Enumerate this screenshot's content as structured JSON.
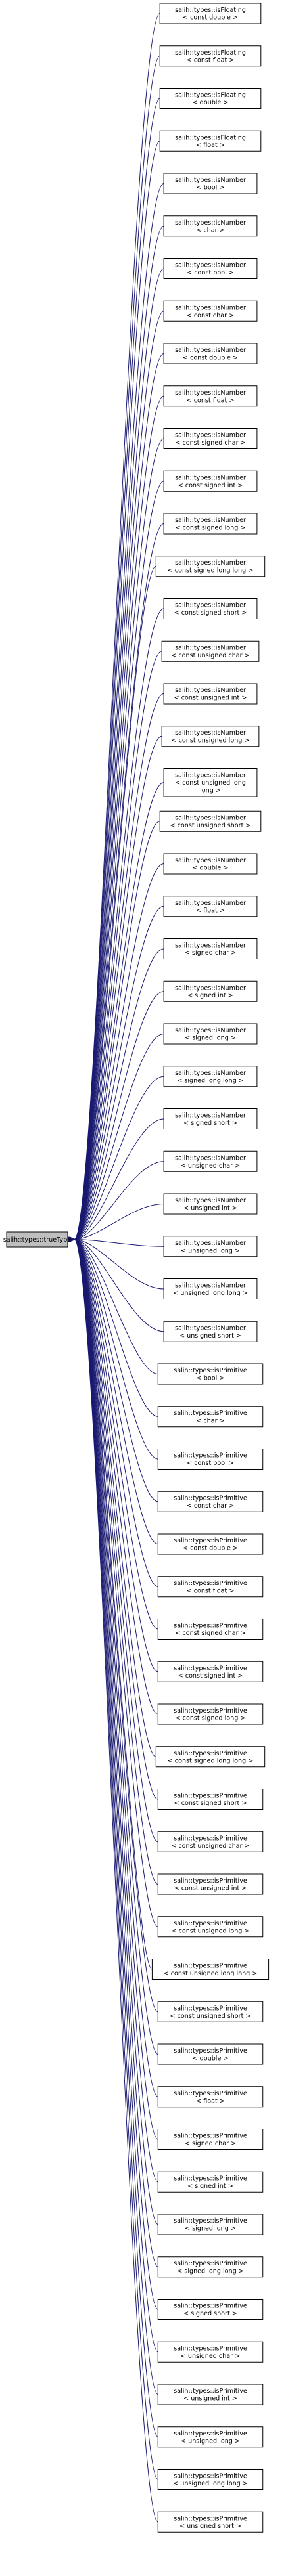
{
  "diagram": {
    "base_class": "salih::types::trueType",
    "colors": {
      "edge": "#191970",
      "node_border": "#000000",
      "base_fill": "#bfbfbf",
      "node_fill": "#ffffff"
    },
    "derived": [
      [
        "salih::types::isFloating",
        "< const double >"
      ],
      [
        "salih::types::isFloating",
        "< const float >"
      ],
      [
        "salih::types::isFloating",
        "< double >"
      ],
      [
        "salih::types::isFloating",
        "< float >"
      ],
      [
        "salih::types::isNumber",
        "< bool >"
      ],
      [
        "salih::types::isNumber",
        "< char >"
      ],
      [
        "salih::types::isNumber",
        "< const bool >"
      ],
      [
        "salih::types::isNumber",
        "< const char >"
      ],
      [
        "salih::types::isNumber",
        "< const double >"
      ],
      [
        "salih::types::isNumber",
        "< const float >"
      ],
      [
        "salih::types::isNumber",
        "< const signed char >"
      ],
      [
        "salih::types::isNumber",
        "< const signed int >"
      ],
      [
        "salih::types::isNumber",
        "< const signed long >"
      ],
      [
        "salih::types::isNumber",
        "< const signed long long >"
      ],
      [
        "salih::types::isNumber",
        "< const signed short >"
      ],
      [
        "salih::types::isNumber",
        "< const unsigned char >"
      ],
      [
        "salih::types::isNumber",
        "< const unsigned int >"
      ],
      [
        "salih::types::isNumber",
        "< const unsigned long >"
      ],
      [
        "salih::types::isNumber",
        "< const unsigned long",
        "long >"
      ],
      [
        "salih::types::isNumber",
        "< const unsigned short >"
      ],
      [
        "salih::types::isNumber",
        "< double >"
      ],
      [
        "salih::types::isNumber",
        "< float >"
      ],
      [
        "salih::types::isNumber",
        "< signed char >"
      ],
      [
        "salih::types::isNumber",
        "< signed int >"
      ],
      [
        "salih::types::isNumber",
        "< signed long >"
      ],
      [
        "salih::types::isNumber",
        "< signed long long >"
      ],
      [
        "salih::types::isNumber",
        "< signed short >"
      ],
      [
        "salih::types::isNumber",
        "< unsigned char >"
      ],
      [
        "salih::types::isNumber",
        "< unsigned int >"
      ],
      [
        "salih::types::isNumber",
        "< unsigned long >"
      ],
      [
        "salih::types::isNumber",
        "< unsigned long long >"
      ],
      [
        "salih::types::isNumber",
        "< unsigned short >"
      ],
      [
        "salih::types::isPrimitive",
        "< bool >"
      ],
      [
        "salih::types::isPrimitive",
        "< char >"
      ],
      [
        "salih::types::isPrimitive",
        "< const bool >"
      ],
      [
        "salih::types::isPrimitive",
        "< const char >"
      ],
      [
        "salih::types::isPrimitive",
        "< const double >"
      ],
      [
        "salih::types::isPrimitive",
        "< const float >"
      ],
      [
        "salih::types::isPrimitive",
        "< const signed char >"
      ],
      [
        "salih::types::isPrimitive",
        "< const signed int >"
      ],
      [
        "salih::types::isPrimitive",
        "< const signed long >"
      ],
      [
        "salih::types::isPrimitive",
        "< const signed long long >"
      ],
      [
        "salih::types::isPrimitive",
        "< const signed short >"
      ],
      [
        "salih::types::isPrimitive",
        "< const unsigned char >"
      ],
      [
        "salih::types::isPrimitive",
        "< const unsigned int >"
      ],
      [
        "salih::types::isPrimitive",
        "< const unsigned long >"
      ],
      [
        "salih::types::isPrimitive",
        "< const unsigned long long >"
      ],
      [
        "salih::types::isPrimitive",
        "< const unsigned short >"
      ],
      [
        "salih::types::isPrimitive",
        "< double >"
      ],
      [
        "salih::types::isPrimitive",
        "< float >"
      ],
      [
        "salih::types::isPrimitive",
        "< signed char >"
      ],
      [
        "salih::types::isPrimitive",
        "< signed int >"
      ],
      [
        "salih::types::isPrimitive",
        "< signed long >"
      ],
      [
        "salih::types::isPrimitive",
        "< signed long long >"
      ],
      [
        "salih::types::isPrimitive",
        "< signed short >"
      ],
      [
        "salih::types::isPrimitive",
        "< unsigned char >"
      ],
      [
        "salih::types::isPrimitive",
        "< unsigned int >"
      ],
      [
        "salih::types::isPrimitive",
        "< unsigned long >"
      ],
      [
        "salih::types::isPrimitive",
        "< unsigned long long >"
      ],
      [
        "salih::types::isPrimitive",
        "< unsigned short >"
      ]
    ]
  }
}
